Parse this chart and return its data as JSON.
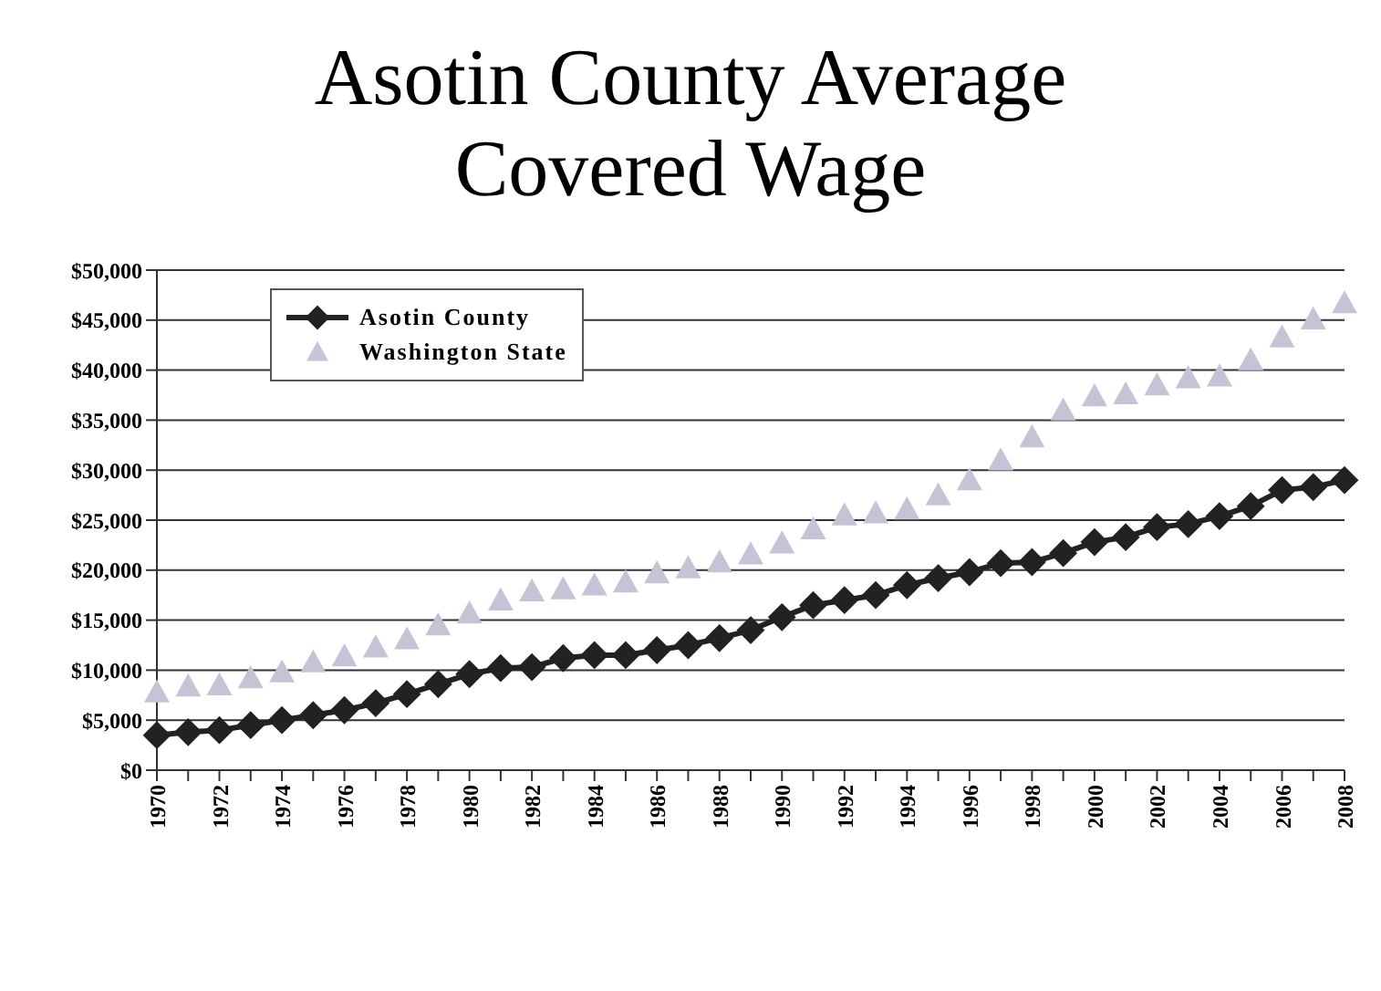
{
  "chart_data": {
    "type": "line",
    "title": "Asotin County Average Covered Wage",
    "categories": [
      "1970",
      null,
      "1972",
      null,
      "1974",
      null,
      "1976",
      null,
      "1978",
      null,
      "1980",
      null,
      "1982",
      null,
      "1984",
      null,
      "1986",
      null,
      "1988",
      null,
      "1990",
      null,
      "1992",
      null,
      "1994",
      null,
      "1996",
      null,
      "1998",
      null,
      "2000",
      null,
      "2002",
      null,
      "2004",
      null,
      "2006",
      null,
      "2008"
    ],
    "series": [
      {
        "name": "Asotin County",
        "color": "#222222",
        "marker": "diamond",
        "values": [
          3500,
          3800,
          4000,
          4500,
          5000,
          5500,
          6000,
          6700,
          7600,
          8600,
          9600,
          10200,
          10300,
          11200,
          11500,
          11500,
          12000,
          12500,
          13200,
          14000,
          15300,
          16500,
          17000,
          17500,
          18500,
          19200,
          19800,
          20700,
          20800,
          21700,
          22800,
          23300,
          24300,
          24600,
          25400,
          26400,
          28000,
          28300,
          29000
        ]
      },
      {
        "name": "Washington State",
        "type": "scatter",
        "color": "#c4c4d6",
        "marker": "triangle",
        "values": [
          7800,
          8400,
          8500,
          9200,
          9800,
          10800,
          11400,
          12300,
          13100,
          14500,
          15700,
          17000,
          17900,
          18100,
          18500,
          18800,
          19700,
          20200,
          20800,
          21600,
          22700,
          24100,
          25500,
          25700,
          26100,
          27500,
          29000,
          31000,
          33300,
          36000,
          37400,
          37600,
          38500,
          39200,
          39400,
          41000,
          43300,
          45100,
          46700
        ]
      }
    ],
    "ylim": [
      0,
      50000
    ],
    "yticks": [
      {
        "value": 0,
        "label": "$0"
      },
      {
        "value": 5000,
        "label": "$5,000"
      },
      {
        "value": 10000,
        "label": "$10,000"
      },
      {
        "value": 15000,
        "label": "$15,000"
      },
      {
        "value": 20000,
        "label": "$20,000"
      },
      {
        "value": 25000,
        "label": "$25,000"
      },
      {
        "value": 30000,
        "label": "$30,000"
      },
      {
        "value": 35000,
        "label": "$35,000"
      },
      {
        "value": 40000,
        "label": "$40,000"
      },
      {
        "value": 45000,
        "label": "$45,000"
      },
      {
        "value": 50000,
        "label": "$50,000"
      }
    ],
    "grid": "y",
    "legend": "top left"
  }
}
